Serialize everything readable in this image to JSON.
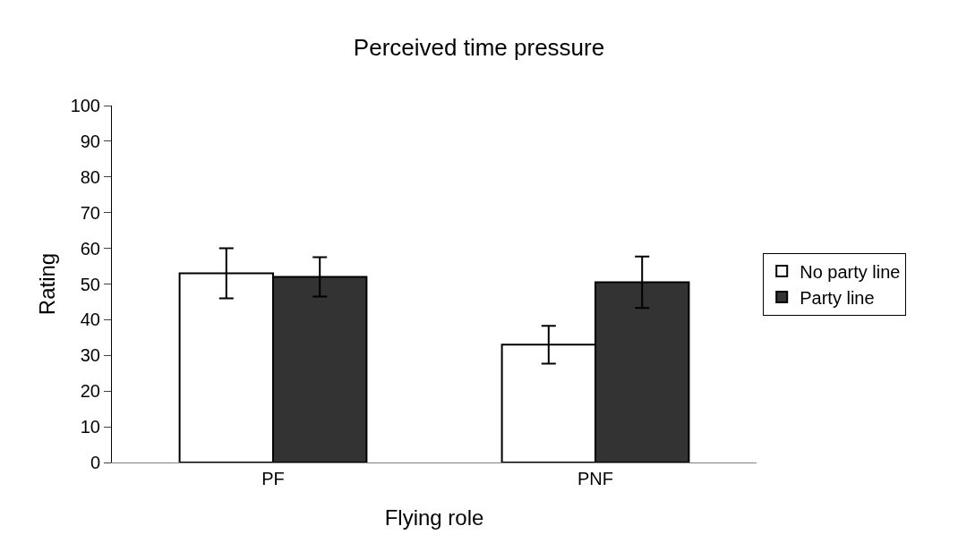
{
  "chart_data": {
    "type": "bar",
    "title": "Perceived time pressure",
    "xlabel": "Flying role",
    "ylabel": "Rating",
    "categories": [
      "PF",
      "PNF"
    ],
    "series": [
      {
        "name": "No party line",
        "color": "#ffffff",
        "values": [
          53,
          33
        ],
        "errors": [
          7,
          5.3
        ]
      },
      {
        "name": "Party line",
        "color": "#333333",
        "values": [
          52,
          50.5
        ],
        "errors": [
          5.5,
          7.2
        ]
      }
    ],
    "ylim": [
      0,
      100
    ],
    "yticks": [
      0,
      10,
      20,
      30,
      40,
      50,
      60,
      70,
      80,
      90,
      100
    ],
    "legend": "right"
  }
}
